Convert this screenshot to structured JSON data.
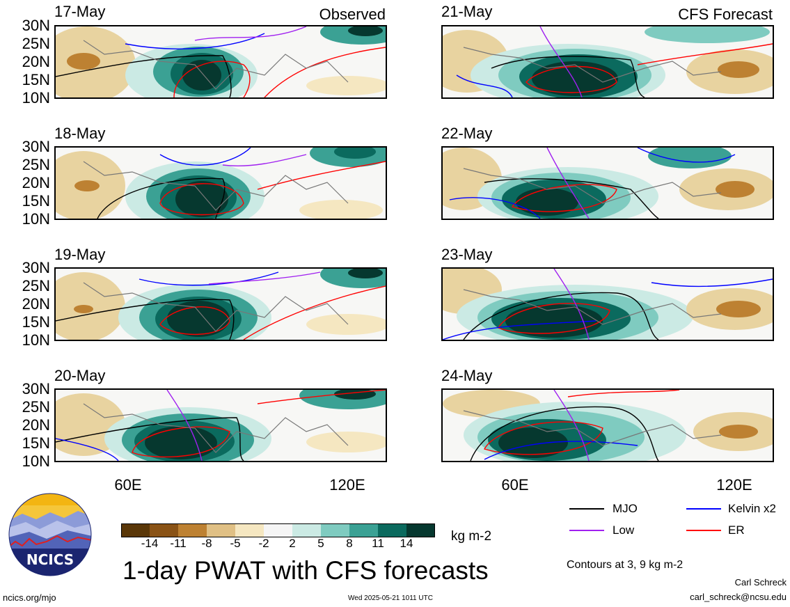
{
  "header": {
    "observed_label": "Observed",
    "forecast_label": "CFS Forecast"
  },
  "panels": {
    "left": [
      "17-May",
      "18-May",
      "19-May",
      "20-May"
    ],
    "right": [
      "21-May",
      "22-May",
      "23-May",
      "24-May"
    ]
  },
  "lat_labels": [
    "30N",
    "25N",
    "20N",
    "15N",
    "10N"
  ],
  "lon_labels": [
    "60E",
    "120E"
  ],
  "colorbar": {
    "colors": [
      "#5a3708",
      "#8a5316",
      "#bd8132",
      "#e0c085",
      "#f5e7c1",
      "#f5f5f5",
      "#cbeae4",
      "#7fcbc0",
      "#3ba194",
      "#0b6a5e",
      "#06382f"
    ],
    "ticks": [
      "-14",
      "-11",
      "-8",
      "-5",
      "-2",
      "2",
      "5",
      "8",
      "11",
      "14"
    ],
    "units": "kg m-2"
  },
  "title": "1-day PWAT with CFS forecasts",
  "legend": {
    "items": [
      {
        "label": "MJO",
        "color": "#000000"
      },
      {
        "label": "Kelvin x2",
        "color": "#0000ff"
      },
      {
        "label": "Low",
        "color": "#a020f0"
      },
      {
        "label": "ER",
        "color": "#ff0000"
      }
    ],
    "contours": "Contours at 3, 9 kg m-2"
  },
  "logo": {
    "text": "NCICS"
  },
  "footer": {
    "url": "ncics.org/mjo",
    "timestamp": "Wed 2025-05-21 1011 UTC",
    "author": "Carl Schreck",
    "email": "carl_schreck@ncsu.edu"
  }
}
